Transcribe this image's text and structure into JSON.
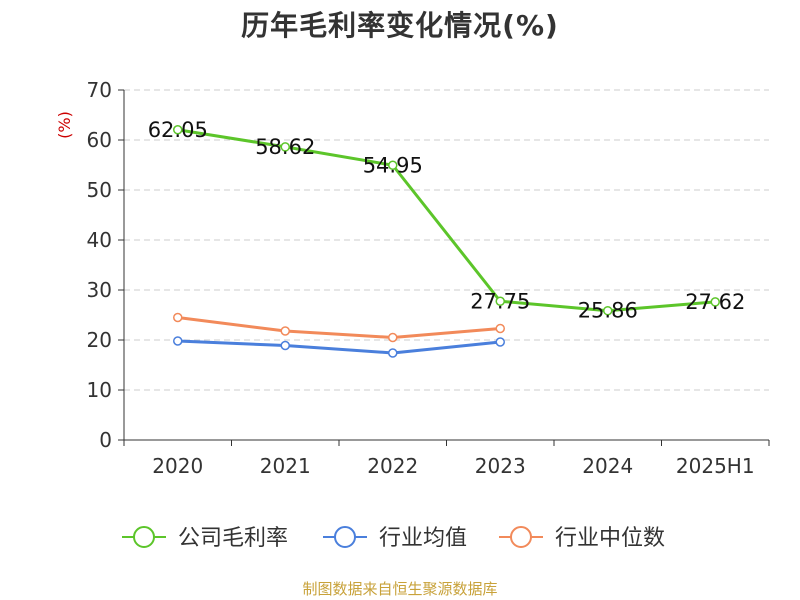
{
  "title": "历年毛利率变化情况(%)",
  "source": "制图数据来自恒生聚源数据库",
  "chart_data": {
    "type": "line",
    "title": "历年毛利率变化情况(%)",
    "ylabel": "(%)",
    "ylim": [
      0,
      70
    ],
    "yticks": [
      0,
      10,
      20,
      30,
      40,
      50,
      60,
      70
    ],
    "grid": true,
    "legend_position": "bottom",
    "categories": [
      "2020",
      "2021",
      "2022",
      "2023",
      "2024",
      "2025H1"
    ],
    "series": [
      {
        "name": "公司毛利率",
        "color": "#5cc52a",
        "labels": true,
        "values": [
          62.05,
          58.62,
          54.95,
          27.75,
          25.86,
          27.62
        ]
      },
      {
        "name": "行业均值",
        "color": "#4a7fdc",
        "labels": false,
        "values": [
          19.8,
          18.9,
          17.4,
          19.6,
          null,
          null
        ]
      },
      {
        "name": "行业中位数",
        "color": "#f28a5a",
        "labels": false,
        "values": [
          24.5,
          21.8,
          20.5,
          22.3,
          null,
          null
        ]
      }
    ],
    "label_texts": [
      "62.05",
      "58.62",
      "54.95",
      "27.75",
      "25.86",
      "27.62"
    ]
  },
  "colors": {
    "axis": "#333333",
    "grid": "#cccccc",
    "ylabel": "#cc0000"
  }
}
